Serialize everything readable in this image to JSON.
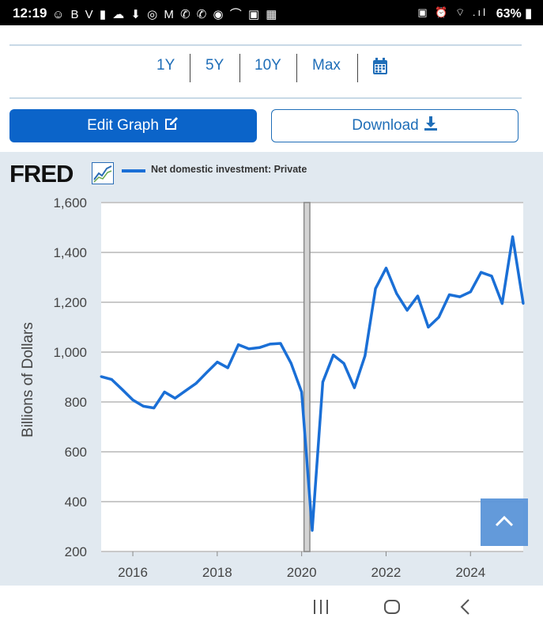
{
  "status_bar": {
    "time": "12:19",
    "left_icons": "☺ B V ▮ ☁ ⬇ ◎ M ✆ ✆ ◉ ⌒ ▣ ▦",
    "right_icons": "▣ ⏰ ⌔ .ıl",
    "battery": "63%"
  },
  "range": {
    "buttons": [
      "1Y",
      "5Y",
      "10Y",
      "Max"
    ],
    "calendar_icon": "calendar-icon"
  },
  "actions": {
    "edit_label": "Edit Graph",
    "download_label": "Download"
  },
  "brand": {
    "logo": "FRED"
  },
  "colors": {
    "accent": "#0b64c9",
    "series": "#1a6fd6",
    "panel": "#e1e9f0"
  },
  "chart_data": {
    "type": "line",
    "title": "",
    "xlabel": "",
    "ylabel": "Billions of Dollars",
    "ylim": [
      200,
      1600
    ],
    "yticks": [
      "200",
      "400",
      "600",
      "800",
      "1,000",
      "1,200",
      "1,400",
      "1,600"
    ],
    "xticks": [
      "2016",
      "2018",
      "2020",
      "2022",
      "2024"
    ],
    "xlim": [
      2015.25,
      2025.25
    ],
    "grid": true,
    "legend_placement": "top-left",
    "recession_shading": [
      2020.0,
      2020.25
    ],
    "series": [
      {
        "name": "Net domestic investment: Private",
        "color": "#1a6fd6",
        "x": [
          2015.25,
          2015.5,
          2015.75,
          2016.0,
          2016.25,
          2016.5,
          2016.75,
          2017.0,
          2017.25,
          2017.5,
          2017.75,
          2018.0,
          2018.25,
          2018.5,
          2018.75,
          2019.0,
          2019.25,
          2019.5,
          2019.75,
          2020.0,
          2020.25,
          2020.5,
          2020.75,
          2021.0,
          2021.25,
          2021.5,
          2021.75,
          2022.0,
          2022.25,
          2022.5,
          2022.75,
          2023.0,
          2023.25,
          2023.5,
          2023.75,
          2024.0,
          2024.25,
          2024.5,
          2024.75,
          2025.0,
          2025.25
        ],
        "values": [
          902,
          890,
          850,
          808,
          783,
          776,
          840,
          815,
          845,
          875,
          918,
          960,
          937,
          1030,
          1013,
          1018,
          1032,
          1035,
          955,
          840,
          285,
          880,
          988,
          955,
          857,
          985,
          1255,
          1337,
          1235,
          1168,
          1225,
          1100,
          1140,
          1230,
          1222,
          1242,
          1320,
          1305,
          1195,
          1463,
          1195
        ]
      }
    ]
  }
}
